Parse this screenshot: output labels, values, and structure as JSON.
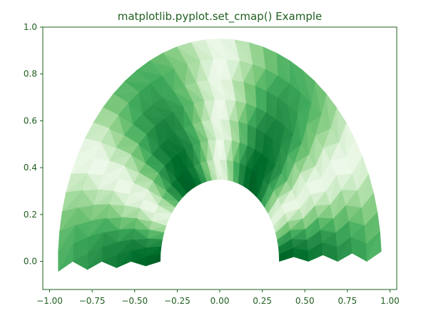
{
  "chart_data": {
    "type": "tripcolor",
    "title": "matplotlib.pyplot.set_cmap() Example",
    "xlabel": "",
    "ylabel": "",
    "colormap": "Greens",
    "xlim": [
      -1.04,
      1.04
    ],
    "ylim": [
      -0.12,
      1.0
    ],
    "x_ticks": [
      {
        "value": -1.0,
        "label": "−1.00"
      },
      {
        "value": -0.75,
        "label": "−0.75"
      },
      {
        "value": -0.5,
        "label": "−0.50"
      },
      {
        "value": -0.25,
        "label": "−0.25"
      },
      {
        "value": 0.0,
        "label": "0.00"
      },
      {
        "value": 0.25,
        "label": "0.25"
      },
      {
        "value": 0.5,
        "label": "0.50"
      },
      {
        "value": 0.75,
        "label": "0.75"
      },
      {
        "value": 1.0,
        "label": "1.00"
      }
    ],
    "y_ticks": [
      {
        "value": 0.0,
        "label": "0.0"
      },
      {
        "value": 0.2,
        "label": "0.2"
      },
      {
        "value": 0.4,
        "label": "0.4"
      },
      {
        "value": 0.6,
        "label": "0.6"
      },
      {
        "value": 0.8,
        "label": "0.8"
      },
      {
        "value": 1.0,
        "label": "1.0"
      }
    ],
    "mesh": {
      "inner_radius": 0.35,
      "outer_radius": 0.95,
      "n_radii": 8,
      "n_angles": 36,
      "angle_range_deg": [
        0,
        180
      ],
      "angle_skew_deg": [
        -3,
        5
      ]
    },
    "grid": false,
    "legend": "none"
  },
  "colors": {
    "title": "#1f5f1f",
    "axis": "#1f5f1f",
    "tick_labels": "#1f5f1f",
    "background": "#ffffff"
  }
}
